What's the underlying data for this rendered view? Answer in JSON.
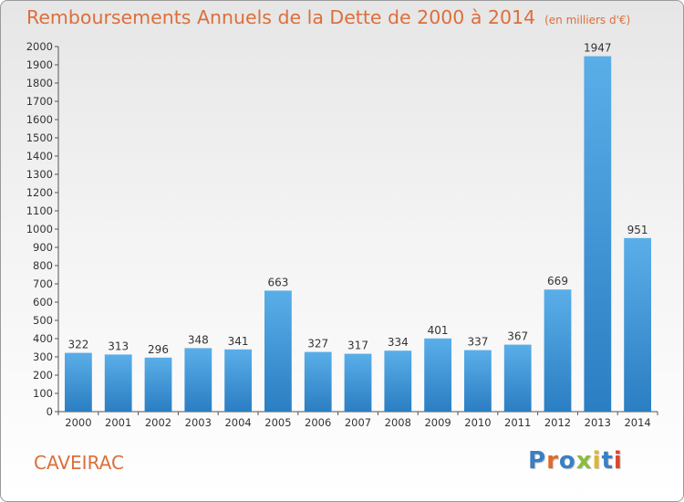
{
  "header": {
    "title": "Remboursements Annuels de la Dette de 2000 à 2014",
    "unit": "(en milliers d'€)"
  },
  "footer": {
    "commune": "CAVEIRAC",
    "logo_text": "Proxiti",
    "logo_colors": [
      "#3a7fc4",
      "#e0692e",
      "#3a7fc4",
      "#8bbd3a",
      "#e0b52a",
      "#3a7fc4",
      "#d9472b"
    ]
  },
  "chart_data": {
    "type": "bar",
    "categories": [
      "2000",
      "2001",
      "2002",
      "2003",
      "2004",
      "2005",
      "2006",
      "2007",
      "2008",
      "2009",
      "2010",
      "2011",
      "2012",
      "2013",
      "2014"
    ],
    "values": [
      322,
      313,
      296,
      348,
      341,
      663,
      327,
      317,
      334,
      401,
      337,
      367,
      669,
      1947,
      951
    ],
    "ylim": [
      0,
      2000
    ],
    "yticks": [
      0,
      100,
      200,
      300,
      400,
      500,
      600,
      700,
      800,
      900,
      1000,
      1100,
      1200,
      1300,
      1400,
      1500,
      1600,
      1700,
      1800,
      1900,
      2000
    ],
    "grid": false,
    "bar_color_top": "#5aaee8",
    "bar_color_bottom": "#2a7ec2"
  }
}
